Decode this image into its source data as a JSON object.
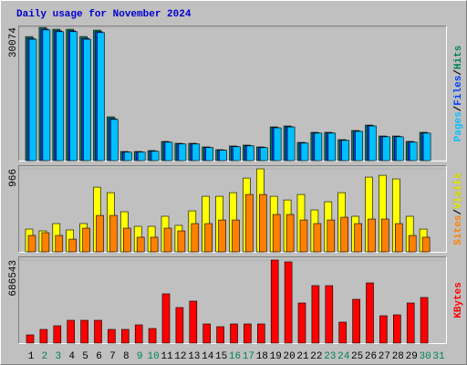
{
  "chart_data": {
    "type": "bar",
    "title": "Daily usage for November 2024",
    "legend_separator": "/",
    "categories": [
      "1",
      "2",
      "3",
      "4",
      "5",
      "6",
      "7",
      "8",
      "9",
      "10",
      "11",
      "12",
      "13",
      "14",
      "15",
      "16",
      "17",
      "18",
      "19",
      "20",
      "21",
      "22",
      "23",
      "24",
      "25",
      "26",
      "27",
      "28",
      "29",
      "30",
      "31"
    ],
    "category_colors": [
      "#000000",
      "#00805c",
      "#00805c",
      "#000000",
      "#000000",
      "#000000",
      "#000000",
      "#000000",
      "#00805c",
      "#00805c",
      "#000000",
      "#000000",
      "#000000",
      "#000000",
      "#000000",
      "#00805c",
      "#00805c",
      "#000000",
      "#000000",
      "#000000",
      "#000000",
      "#000000",
      "#00805c",
      "#00805c",
      "#000000",
      "#000000",
      "#000000",
      "#000000",
      "#000000",
      "#00805c",
      "#00805c"
    ],
    "panels": [
      {
        "ylim": [
          0,
          30500
        ],
        "yticks": [
          30074
        ],
        "series": [
          {
            "name": "Hits",
            "color": "#00805c",
            "values": [
              28000,
              30074,
              29660,
              29660,
              28020,
              29460,
              9890,
              2060,
              2060,
              2270,
              4330,
              3910,
              3910,
              3090,
              2470,
              3300,
              3500,
              3090,
              7620,
              7830,
              4120,
              6390,
              6390,
              4740,
              6800,
              8030,
              5560,
              5560,
              4330,
              6390,
              0
            ]
          },
          {
            "name": "Files",
            "color": "#0040ff",
            "values": [
              27600,
              29700,
              29300,
              29300,
              27600,
              29100,
              9480,
              1950,
              1950,
              2150,
              4200,
              3800,
              3800,
              2980,
              2380,
              3180,
              3380,
              2980,
              7450,
              7650,
              4000,
              6250,
              6250,
              4620,
              6650,
              7870,
              5430,
              5430,
              4200,
              6250,
              0
            ]
          },
          {
            "name": "Pages",
            "color": "#00c0ff",
            "values": [
              27400,
              29500,
              29100,
              29100,
              27400,
              28900,
              9300,
              1900,
              1900,
              2100,
              4150,
              3750,
              3750,
              2930,
              2340,
              3130,
              3330,
              2930,
              7400,
              7600,
              3950,
              6200,
              6200,
              4570,
              6600,
              7820,
              5380,
              5380,
              4150,
              6200,
              0
            ]
          }
        ]
      },
      {
        "ylim": [
          0,
          1009
        ],
        "yticks": [
          966
        ],
        "series": [
          {
            "name": "Visits",
            "color": "#ffff00",
            "values": [
              265,
              244,
              329,
              255,
              329,
              753,
              689,
              467,
              297,
              297,
              414,
              308,
              477,
              647,
              647,
              689,
              859,
              966,
              647,
              604,
              668,
              488,
              583,
              689,
              414,
              870,
              891,
              849,
              414,
              265,
              0
            ]
          },
          {
            "name": "Sites",
            "color": "#ff8000",
            "values": [
              191,
              223,
              191,
              148,
              276,
              424,
              424,
              276,
              170,
              170,
              276,
              244,
              329,
              329,
              371,
              371,
              668,
              668,
              435,
              435,
              371,
              329,
              371,
              403,
              329,
              382,
              382,
              329,
              191,
              170,
              0
            ]
          }
        ]
      },
      {
        "ylim": [
          0,
          716722
        ],
        "yticks": [
          686543
        ],
        "series": [
          {
            "name": "KBytes",
            "color": "#ff0000",
            "values": [
              67900,
              113200,
              143300,
              188600,
              188600,
              188600,
              113200,
              113200,
              150900,
              120700,
              407400,
              294200,
              347000,
              158400,
              135800,
              158400,
              158400,
              158400,
              686543,
              671400,
              331900,
              475300,
              475300,
              173500,
              362100,
              497900,
              226300,
              233900,
              331900,
              377200,
              0
            ]
          }
        ]
      }
    ]
  }
}
